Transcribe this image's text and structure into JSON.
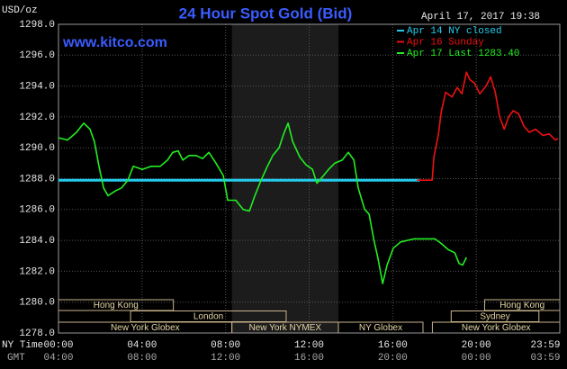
{
  "chart_data": {
    "type": "line",
    "title": "24 Hour Spot Gold (Bid)",
    "website": "www.kitco.com",
    "unit_label": "USD/oz",
    "timestamp": "April 17, 2017 19:38",
    "x_row_labels": [
      "NY Time",
      "GMT"
    ],
    "xlim": [
      0,
      24
    ],
    "xticks": [
      {
        "value": 0,
        "label": "00:00"
      },
      {
        "value": 4,
        "label": "04:00"
      },
      {
        "value": 8,
        "label": "08:00"
      },
      {
        "value": 12,
        "label": "12:00"
      },
      {
        "value": 16,
        "label": "16:00"
      },
      {
        "value": 20,
        "label": "20:00"
      },
      {
        "value": 24,
        "label": "23:59"
      }
    ],
    "gmt_labels": [
      "04:00",
      "08:00",
      "12:00",
      "16:00",
      "20:00",
      "00:00",
      "03:59"
    ],
    "ylim": [
      1278,
      1298
    ],
    "yticks": [
      {
        "value": 1278,
        "label": "1278.0"
      },
      {
        "value": 1280,
        "label": "1280.0"
      },
      {
        "value": 1282,
        "label": "1282.0"
      },
      {
        "value": 1284,
        "label": "1284.0"
      },
      {
        "value": 1286,
        "label": "1286.0"
      },
      {
        "value": 1288,
        "label": "1288.0"
      },
      {
        "value": 1290,
        "label": "1290.0"
      },
      {
        "value": 1292,
        "label": "1292.0"
      },
      {
        "value": 1294,
        "label": "1294.0"
      },
      {
        "value": 1296,
        "label": "1296.0"
      },
      {
        "value": 1298,
        "label": "1298.0"
      }
    ],
    "grid": true,
    "legend": "top-right",
    "series": [
      {
        "name": "Apr 14 NY closed",
        "color": "#22ccee",
        "x": [
          0,
          17.29
        ],
        "values": [
          1287.9,
          1287.9
        ]
      },
      {
        "name": "Apr 16 Sunday",
        "color": "#ee1111",
        "x": [
          17.16,
          17.89,
          17.97,
          18.19,
          18.32,
          18.53,
          18.84,
          19.09,
          19.31,
          19.53,
          19.7,
          19.91,
          20.17,
          20.47,
          20.69,
          20.91,
          21.12,
          21.34,
          21.55,
          21.77,
          22.03,
          22.28,
          22.54,
          22.84,
          23.19,
          23.49,
          23.79,
          23.92
        ],
        "values": [
          1287.9,
          1287.9,
          1289.4,
          1290.9,
          1292.3,
          1293.6,
          1293.3,
          1293.9,
          1293.5,
          1294.9,
          1294.4,
          1294.2,
          1293.5,
          1294.0,
          1294.6,
          1293.6,
          1292.0,
          1291.2,
          1292.0,
          1292.4,
          1292.2,
          1291.4,
          1291.0,
          1291.2,
          1290.8,
          1290.9,
          1290.5,
          1290.6
        ]
      },
      {
        "name": "Apr 17 Last 1283.40",
        "color": "#22ee22",
        "x": [
          0,
          0.43,
          0.86,
          1.21,
          1.51,
          1.72,
          1.94,
          2.16,
          2.37,
          2.72,
          3.02,
          3.32,
          3.58,
          4.01,
          4.44,
          4.87,
          5.22,
          5.47,
          5.73,
          5.95,
          6.25,
          6.59,
          6.9,
          7.2,
          7.54,
          7.89,
          8.1,
          8.49,
          8.84,
          9.14,
          9.4,
          9.7,
          10.0,
          10.26,
          10.56,
          10.78,
          10.99,
          11.21,
          11.55,
          11.85,
          12.16,
          12.37,
          12.63,
          12.93,
          13.23,
          13.58,
          13.88,
          14.14,
          14.35,
          14.66,
          14.87,
          15.09,
          15.3,
          15.52,
          15.73,
          16.03,
          16.38,
          17.03,
          17.67,
          18.02,
          18.32,
          18.66,
          18.97,
          19.18,
          19.35,
          19.53
        ],
        "values": [
          1290.65,
          1290.5,
          1291.0,
          1291.6,
          1291.2,
          1290.4,
          1288.8,
          1287.4,
          1286.9,
          1287.2,
          1287.4,
          1287.9,
          1288.8,
          1288.6,
          1288.8,
          1288.8,
          1289.2,
          1289.7,
          1289.8,
          1289.2,
          1289.5,
          1289.5,
          1289.3,
          1289.7,
          1289.0,
          1288.2,
          1286.6,
          1286.6,
          1286.0,
          1285.9,
          1286.9,
          1287.9,
          1288.8,
          1289.5,
          1290.0,
          1290.9,
          1291.6,
          1290.4,
          1289.4,
          1288.9,
          1288.6,
          1287.7,
          1288.1,
          1288.6,
          1289.0,
          1289.2,
          1289.7,
          1289.2,
          1287.4,
          1286.0,
          1285.7,
          1284.1,
          1282.8,
          1281.2,
          1282.4,
          1283.5,
          1283.9,
          1284.1,
          1284.1,
          1284.1,
          1283.8,
          1283.4,
          1283.2,
          1282.5,
          1282.4,
          1282.9
        ]
      }
    ],
    "sessions": [
      [
        {
          "label": "Hong Kong",
          "start": 0,
          "end": 5.5
        },
        {
          "label": "Hong Kong",
          "start": 20.4,
          "end": 24
        }
      ],
      [
        {
          "label": "London",
          "start": 3.45,
          "end": 10.9
        },
        {
          "label": "Sydney",
          "start": 18.8,
          "end": 23.0
        }
      ],
      [
        {
          "label": "New York Globex",
          "start": 0,
          "end": 8.3
        },
        {
          "label": "New York NYMEX",
          "start": 8.3,
          "end": 13.4,
          "shaded": true
        },
        {
          "label": "NY Globex",
          "start": 13.4,
          "end": 17.45
        },
        {
          "label": "New York Globex",
          "start": 17.9,
          "end": 24
        }
      ]
    ]
  }
}
